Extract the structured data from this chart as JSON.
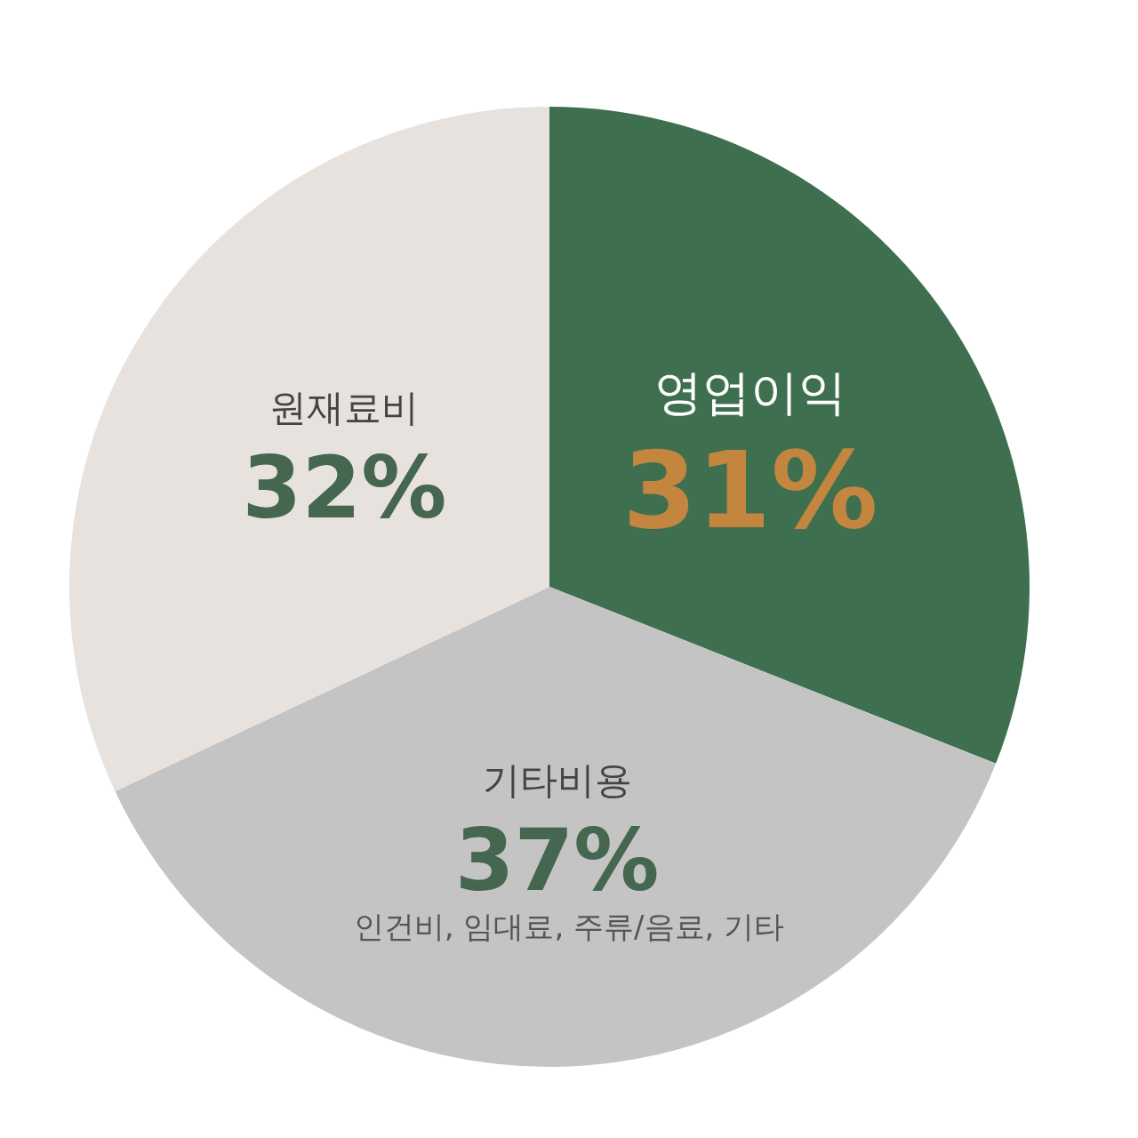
{
  "chart_data": {
    "type": "pie",
    "categories": [
      "영업이익",
      "기타비용",
      "원재료비"
    ],
    "values": [
      31,
      37,
      32
    ],
    "value_labels": [
      "31%",
      "37%",
      "32%"
    ],
    "colors": [
      "#3e7050",
      "#c4c4c4",
      "#e7e2de"
    ],
    "annotations": [
      "인건비, 임대료, 주류/음료, 기타"
    ],
    "legend": false
  }
}
